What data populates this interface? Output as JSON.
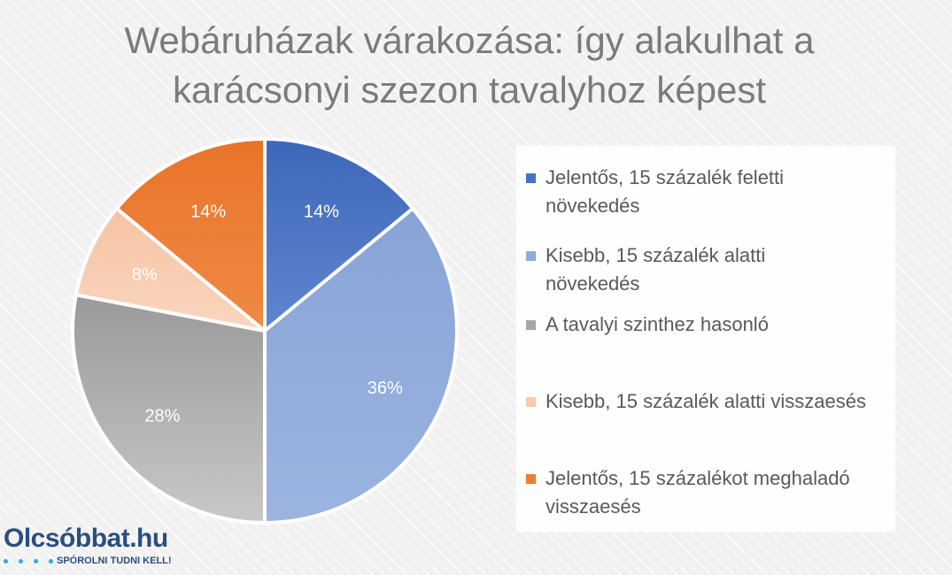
{
  "chart_data": {
    "type": "pie",
    "title": [
      "Webáruházak várakozása: így alakulhat a",
      "karácsonyi szezon tavalyhoz képest"
    ],
    "categories": [
      "Jelentős, 15 százalék feletti növekedés",
      "Kisebb, 15 százalék alatti növekedés",
      "A tavalyi szinthez hasonló",
      "Kisebb, 15 százalék alatti visszaesés",
      "Jelentős, 15 százalékot meghaladó visszaesés"
    ],
    "values": [
      14,
      36,
      28,
      8,
      14
    ],
    "data_labels": [
      "14%",
      "36%",
      "28%",
      "8%",
      "14%"
    ],
    "colors": [
      "#4472c4",
      "#8faadc",
      "#a5a5a5",
      "#f8cbad",
      "#ed7d31"
    ],
    "legend_lines": [
      [
        "Jelentős, 15 százalék feletti",
        "növekedés"
      ],
      [
        "Kisebb, 15 százalék alatti",
        "növekedés"
      ],
      [
        "A tavalyi szinthez hasonló"
      ],
      [
        "Kisebb, 15 százalék alatti visszaesés"
      ],
      [
        "Jelentős, 15 százalékot meghaladó",
        "visszaesés"
      ]
    ],
    "legend_position": "right"
  },
  "logo": {
    "brand": "Olcsóbbat.hu",
    "slogan": "SPÓROLNI TUDNI KELL!",
    "dot_color": "#37a9dc"
  }
}
